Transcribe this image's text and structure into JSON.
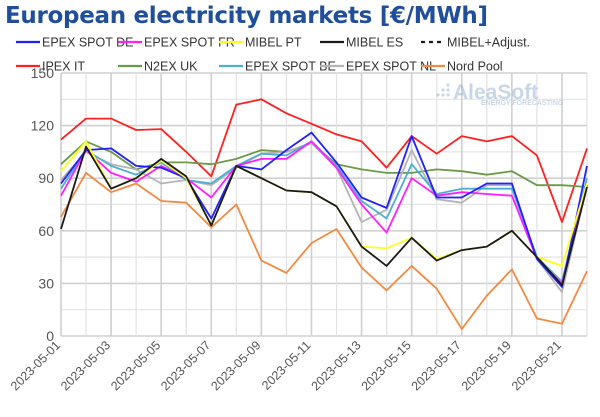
{
  "chart_data": {
    "type": "line",
    "title": "European electricity markets [€/MWh]",
    "xlabel": "",
    "ylabel": "",
    "ylim": [
      0,
      150
    ],
    "yticks": [
      0,
      30,
      60,
      90,
      120,
      150
    ],
    "grid": true,
    "legend_position": "top",
    "x": [
      "2023-05-01",
      "2023-05-02",
      "2023-05-03",
      "2023-05-04",
      "2023-05-05",
      "2023-05-06",
      "2023-05-07",
      "2023-05-08",
      "2023-05-09",
      "2023-05-10",
      "2023-05-11",
      "2023-05-12",
      "2023-05-13",
      "2023-05-14",
      "2023-05-15",
      "2023-05-16",
      "2023-05-17",
      "2023-05-18",
      "2023-05-19",
      "2023-05-20",
      "2023-05-21",
      "2023-05-22"
    ],
    "xtick_labels": [
      "2023-05-01",
      "2023-05-03",
      "2023-05-05",
      "2023-05-07",
      "2023-05-09",
      "2023-05-11",
      "2023-05-13",
      "2023-05-15",
      "2023-05-17",
      "2023-05-19",
      "2023-05-21"
    ],
    "series": [
      {
        "name": "IPEX IT",
        "color": "#ff2020",
        "values": [
          112,
          124,
          124,
          117.5,
          118,
          105,
          91,
          132,
          135,
          127,
          121,
          115,
          111,
          96,
          114,
          104,
          114,
          111,
          114,
          103,
          65,
          107
        ]
      },
      {
        "name": "N2EX UK",
        "color": "#6a9a4a",
        "values": [
          98,
          111,
          105,
          95,
          99,
          99,
          98,
          101,
          106,
          105,
          110,
          98,
          95,
          93,
          93,
          95,
          94,
          92,
          94,
          86,
          86,
          85
        ]
      },
      {
        "name": "Nord Pool",
        "color": "#f28a40",
        "values": [
          68,
          93,
          82,
          87,
          77,
          76,
          62,
          75,
          43,
          36,
          53,
          61,
          39,
          26,
          40,
          27,
          4,
          23,
          38,
          10,
          7,
          37
        ]
      },
      {
        "name": "EPEX SPOT NL",
        "color": "#b4b4b4",
        "values": [
          89,
          105,
          98,
          95,
          87,
          89,
          86,
          96,
          104,
          105,
          110,
          96,
          65,
          72,
          106,
          78,
          76,
          86,
          86,
          44,
          25,
          86
        ]
      },
      {
        "name": "EPEX SPOT BE",
        "color": "#4bb0d0",
        "values": [
          84,
          106,
          97,
          92,
          99,
          89,
          87,
          97,
          104,
          103,
          111,
          97,
          77,
          67,
          98,
          81,
          84,
          84,
          84,
          45,
          31,
          90
        ]
      },
      {
        "name": "EPEX SPOT FR",
        "color": "#ff20ff",
        "values": [
          80,
          106,
          93,
          88,
          97,
          90,
          79,
          97,
          101,
          101,
          111,
          96,
          75,
          59,
          90,
          80,
          82,
          81,
          80,
          44,
          30,
          86
        ]
      },
      {
        "name": "EPEX SPOT DE",
        "color": "#2020ff",
        "values": [
          87,
          106,
          107,
          97,
          96,
          90,
          67,
          97,
          95,
          106,
          116,
          99,
          79,
          73,
          114,
          79,
          79,
          87,
          87,
          44,
          28,
          97
        ]
      },
      {
        "name": "MIBEL PT",
        "color": "#ffff20",
        "values": [
          94,
          111,
          84,
          90,
          100,
          90,
          63,
          97,
          90,
          83,
          82,
          74,
          51,
          50,
          56,
          44,
          49,
          51,
          60,
          45,
          40,
          87
        ]
      },
      {
        "name": "MIBEL ES",
        "color": "#1a1a1a",
        "values": [
          61,
          108,
          84,
          90,
          101,
          91,
          63,
          97,
          90,
          83,
          82,
          74,
          51,
          40,
          56,
          43,
          49,
          51,
          60,
          45,
          29,
          85
        ]
      }
    ],
    "legend": [
      {
        "name": "EPEX SPOT DE",
        "color": "#2020ff",
        "dash": false
      },
      {
        "name": "EPEX SPOT FR",
        "color": "#ff20ff",
        "dash": false
      },
      {
        "name": "MIBEL PT",
        "color": "#ffff20",
        "dash": false
      },
      {
        "name": "MIBEL ES",
        "color": "#1a1a1a",
        "dash": false
      },
      {
        "name": "MIBEL+Adjust.",
        "color": "#1a1a1a",
        "dash": true
      },
      {
        "name": "IPEX IT",
        "color": "#ff2020",
        "dash": false
      },
      {
        "name": "N2EX UK",
        "color": "#6a9a4a",
        "dash": false
      },
      {
        "name": "EPEX SPOT BE",
        "color": "#4bb0d0",
        "dash": false
      },
      {
        "name": "EPEX SPOT NL",
        "color": "#b4b4b4",
        "dash": false
      },
      {
        "name": "Nord Pool",
        "color": "#f28a40",
        "dash": false
      }
    ]
  },
  "watermark": {
    "brand": "AleaSoft",
    "tagline": "ENERGY FORECASTING"
  }
}
